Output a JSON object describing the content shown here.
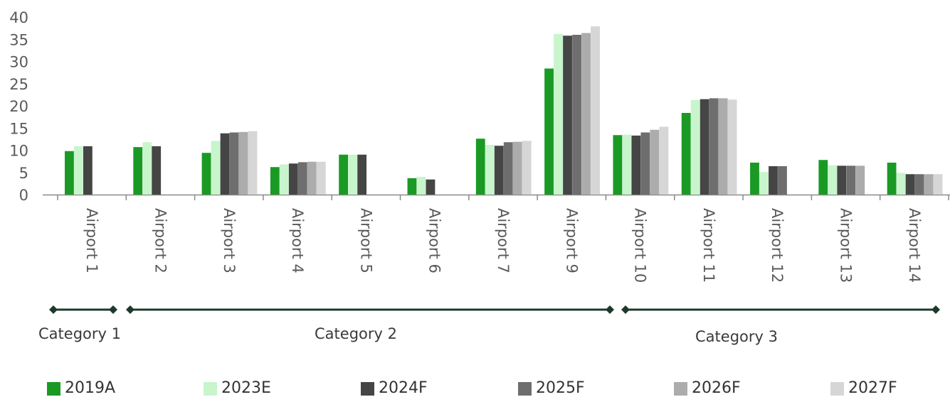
{
  "chart_data": {
    "type": "bar",
    "categories": [
      "Airport 1",
      "Airport 2",
      "Airport 3",
      "Airport 4",
      "Airport 5",
      "Airport 6",
      "Airport 7",
      "Airport 9",
      "Airport 10",
      "Airport 11",
      "Airport 12",
      "Airport 13",
      "Airport 14"
    ],
    "series": [
      {
        "name": "2019A",
        "color": "#1a9a24",
        "values": [
          9.8,
          10.7,
          9.4,
          6.2,
          9.0,
          3.7,
          12.6,
          28.4,
          13.4,
          18.4,
          7.2,
          7.8,
          7.2
        ]
      },
      {
        "name": "2023E",
        "color": "#c8f5cc",
        "values": [
          10.9,
          11.8,
          12.1,
          6.8,
          9.0,
          4.0,
          11.2,
          36.2,
          13.5,
          21.3,
          5.1,
          6.6,
          4.9
        ]
      },
      {
        "name": "2024F",
        "color": "#454545",
        "values": [
          10.9,
          10.9,
          13.8,
          7.0,
          9.0,
          3.4,
          11.0,
          35.8,
          13.3,
          21.5,
          6.4,
          6.5,
          4.6
        ]
      },
      {
        "name": "2025F",
        "color": "#6e6e6e",
        "values": [
          null,
          null,
          14.0,
          7.3,
          null,
          null,
          11.8,
          36.0,
          14.0,
          21.7,
          6.4,
          6.5,
          4.6
        ]
      },
      {
        "name": "2026F",
        "color": "#acacac",
        "values": [
          null,
          null,
          14.1,
          7.4,
          null,
          null,
          11.9,
          36.4,
          14.6,
          21.7,
          null,
          6.5,
          4.6
        ]
      },
      {
        "name": "2027F",
        "color": "#d6d6d6",
        "values": [
          null,
          null,
          14.3,
          7.4,
          null,
          null,
          12.1,
          37.9,
          15.3,
          21.4,
          null,
          null,
          4.6
        ]
      }
    ],
    "yticks": [
      "0",
      "5",
      "10",
      "15",
      "20",
      "25",
      "30",
      "35",
      "40"
    ],
    "ylim": [
      0,
      40
    ],
    "groups": [
      {
        "label": "Category 1",
        "from": 0,
        "to": 0
      },
      {
        "label": "Category 2",
        "from": 1,
        "to": 7
      },
      {
        "label": "Category 3",
        "from": 8,
        "to": 12
      }
    ],
    "grid": false,
    "legend_position": "bottom",
    "group_bracket_color": "#1c3a2a"
  }
}
